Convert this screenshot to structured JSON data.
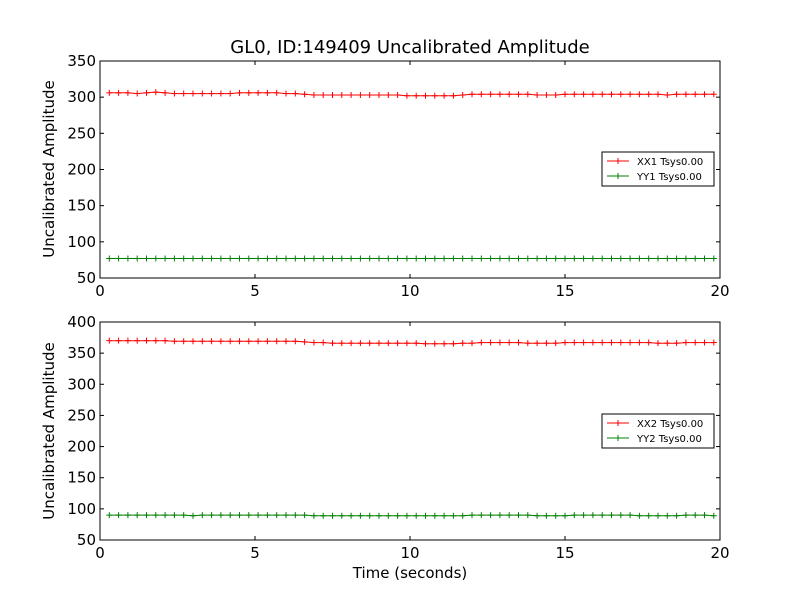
{
  "chart_data": [
    {
      "type": "line",
      "title": "GL0, ID:149409 Uncalibrated Amplitude",
      "xlabel": "",
      "ylabel": "Uncalibrated Amplitude",
      "xlim": [
        0,
        20
      ],
      "ylim": [
        50,
        350
      ],
      "xticks": [
        0,
        5,
        10,
        15,
        20
      ],
      "yticks": [
        50,
        100,
        150,
        200,
        250,
        300,
        350
      ],
      "grid": false,
      "legend_position": "center-right",
      "series": [
        {
          "name": "XX1 Tsys0.00",
          "color": "#ff0000",
          "marker": "+",
          "x": [
            0.3,
            0.6,
            0.9,
            1.2,
            1.5,
            1.8,
            2.1,
            2.4,
            2.7,
            3.0,
            3.3,
            3.6,
            3.9,
            4.2,
            4.5,
            4.8,
            5.1,
            5.4,
            5.7,
            6.0,
            6.3,
            6.6,
            6.9,
            7.2,
            7.5,
            7.8,
            8.1,
            8.4,
            8.7,
            9.0,
            9.3,
            9.6,
            9.9,
            10.2,
            10.5,
            10.8,
            11.1,
            11.4,
            11.7,
            12.0,
            12.3,
            12.6,
            12.9,
            13.2,
            13.5,
            13.8,
            14.1,
            14.4,
            14.7,
            15.0,
            15.3,
            15.6,
            15.9,
            16.2,
            16.5,
            16.8,
            17.1,
            17.4,
            17.7,
            18.0,
            18.3,
            18.6,
            18.9,
            19.2,
            19.5,
            19.8
          ],
          "y": [
            306,
            306,
            306,
            305,
            306,
            307,
            306,
            305,
            305,
            305,
            305,
            305,
            305,
            305,
            306,
            306,
            306,
            306,
            306,
            305,
            305,
            304,
            303,
            303,
            303,
            303,
            303,
            303,
            303,
            303,
            303,
            303,
            302,
            302,
            302,
            302,
            302,
            302,
            303,
            304,
            304,
            304,
            304,
            304,
            304,
            304,
            303,
            303,
            303,
            304,
            304,
            304,
            304,
            304,
            304,
            304,
            304,
            304,
            304,
            304,
            303,
            304,
            304,
            304,
            304,
            304
          ]
        },
        {
          "name": "YY1 Tsys0.00",
          "color": "#008000",
          "marker": "+",
          "x": [
            0.3,
            0.6,
            0.9,
            1.2,
            1.5,
            1.8,
            2.1,
            2.4,
            2.7,
            3.0,
            3.3,
            3.6,
            3.9,
            4.2,
            4.5,
            4.8,
            5.1,
            5.4,
            5.7,
            6.0,
            6.3,
            6.6,
            6.9,
            7.2,
            7.5,
            7.8,
            8.1,
            8.4,
            8.7,
            9.0,
            9.3,
            9.6,
            9.9,
            10.2,
            10.5,
            10.8,
            11.1,
            11.4,
            11.7,
            12.0,
            12.3,
            12.6,
            12.9,
            13.2,
            13.5,
            13.8,
            14.1,
            14.4,
            14.7,
            15.0,
            15.3,
            15.6,
            15.9,
            16.2,
            16.5,
            16.8,
            17.1,
            17.4,
            17.7,
            18.0,
            18.3,
            18.6,
            18.9,
            19.2,
            19.5,
            19.8
          ],
          "y": [
            77,
            77,
            77,
            77,
            77,
            77,
            77,
            77,
            77,
            77,
            77,
            77,
            77,
            77,
            77,
            77,
            77,
            77,
            77,
            77,
            77,
            77,
            77,
            77,
            77,
            77,
            77,
            77,
            77,
            77,
            77,
            77,
            77,
            77,
            77,
            77,
            77,
            77,
            77,
            77,
            77,
            77,
            77,
            77,
            77,
            77,
            77,
            77,
            77,
            77,
            77,
            77,
            77,
            77,
            77,
            77,
            77,
            77,
            77,
            77,
            77,
            77,
            77,
            77,
            77,
            77
          ]
        }
      ]
    },
    {
      "type": "line",
      "title": "",
      "xlabel": "Time (seconds)",
      "ylabel": "Uncalibrated Amplitude",
      "xlim": [
        0,
        20
      ],
      "ylim": [
        50,
        400
      ],
      "xticks": [
        0,
        5,
        10,
        15,
        20
      ],
      "yticks": [
        50,
        100,
        150,
        200,
        250,
        300,
        350,
        400
      ],
      "grid": false,
      "legend_position": "center-right",
      "series": [
        {
          "name": "XX2 Tsys0.00",
          "color": "#ff0000",
          "marker": "+",
          "x": [
            0.3,
            0.6,
            0.9,
            1.2,
            1.5,
            1.8,
            2.1,
            2.4,
            2.7,
            3.0,
            3.3,
            3.6,
            3.9,
            4.2,
            4.5,
            4.8,
            5.1,
            5.4,
            5.7,
            6.0,
            6.3,
            6.6,
            6.9,
            7.2,
            7.5,
            7.8,
            8.1,
            8.4,
            8.7,
            9.0,
            9.3,
            9.6,
            9.9,
            10.2,
            10.5,
            10.8,
            11.1,
            11.4,
            11.7,
            12.0,
            12.3,
            12.6,
            12.9,
            13.2,
            13.5,
            13.8,
            14.1,
            14.4,
            14.7,
            15.0,
            15.3,
            15.6,
            15.9,
            16.2,
            16.5,
            16.8,
            17.1,
            17.4,
            17.7,
            18.0,
            18.3,
            18.6,
            18.9,
            19.2,
            19.5,
            19.8
          ],
          "y": [
            370,
            370,
            370,
            370,
            370,
            370,
            370,
            369,
            369,
            369,
            369,
            369,
            369,
            369,
            369,
            369,
            369,
            369,
            369,
            369,
            369,
            368,
            367,
            367,
            366,
            366,
            366,
            366,
            366,
            366,
            366,
            366,
            366,
            366,
            365,
            365,
            365,
            365,
            366,
            366,
            367,
            367,
            367,
            367,
            367,
            366,
            366,
            366,
            366,
            367,
            367,
            367,
            367,
            367,
            367,
            367,
            367,
            367,
            367,
            366,
            366,
            366,
            367,
            367,
            367,
            367
          ]
        },
        {
          "name": "YY2 Tsys0.00",
          "color": "#008000",
          "marker": "+",
          "x": [
            0.3,
            0.6,
            0.9,
            1.2,
            1.5,
            1.8,
            2.1,
            2.4,
            2.7,
            3.0,
            3.3,
            3.6,
            3.9,
            4.2,
            4.5,
            4.8,
            5.1,
            5.4,
            5.7,
            6.0,
            6.3,
            6.6,
            6.9,
            7.2,
            7.5,
            7.8,
            8.1,
            8.4,
            8.7,
            9.0,
            9.3,
            9.6,
            9.9,
            10.2,
            10.5,
            10.8,
            11.1,
            11.4,
            11.7,
            12.0,
            12.3,
            12.6,
            12.9,
            13.2,
            13.5,
            13.8,
            14.1,
            14.4,
            14.7,
            15.0,
            15.3,
            15.6,
            15.9,
            16.2,
            16.5,
            16.8,
            17.1,
            17.4,
            17.7,
            18.0,
            18.3,
            18.6,
            18.9,
            19.2,
            19.5,
            19.8
          ],
          "y": [
            90,
            90,
            90,
            90,
            90,
            90,
            90,
            90,
            90,
            89,
            90,
            90,
            90,
            90,
            90,
            90,
            90,
            90,
            90,
            90,
            90,
            90,
            89,
            89,
            89,
            89,
            89,
            89,
            89,
            89,
            89,
            89,
            89,
            89,
            89,
            89,
            89,
            89,
            89,
            90,
            90,
            90,
            90,
            90,
            90,
            90,
            89,
            89,
            89,
            89,
            90,
            90,
            90,
            90,
            90,
            90,
            90,
            89,
            89,
            89,
            89,
            89,
            90,
            90,
            90,
            89
          ]
        }
      ]
    }
  ]
}
